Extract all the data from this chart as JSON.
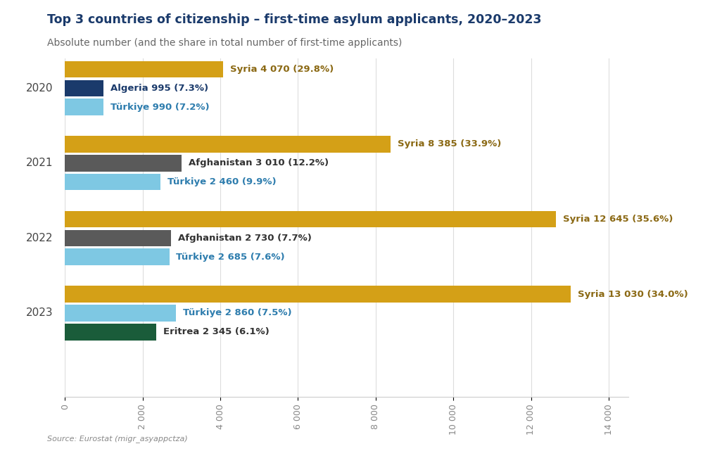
{
  "title": "Top 3 countries of citizenship – first-time asylum applicants, 2020–2023",
  "subtitle": "Absolute number (and the share in total number of first-time applicants)",
  "source": "Source: Eurostat (migr_asyappctza)",
  "bars": {
    "2020": [
      {
        "label": "Syria 4 070 (29.8%)",
        "value": 4070,
        "color": "#D4A017",
        "label_color": "#8B6914"
      },
      {
        "label": "Algeria 995 (7.3%)",
        "value": 995,
        "color": "#1A3A6B",
        "label_color": "#1A3A6B"
      },
      {
        "label": "Türkiye 990 (7.2%)",
        "value": 990,
        "color": "#7EC8E3",
        "label_color": "#2E7DAE"
      }
    ],
    "2021": [
      {
        "label": "Syria 8 385 (33.9%)",
        "value": 8385,
        "color": "#D4A017",
        "label_color": "#8B6914"
      },
      {
        "label": "Afghanistan 3 010 (12.2%)",
        "value": 3010,
        "color": "#5A5A5A",
        "label_color": "#333333"
      },
      {
        "label": "Türkiye 2 460 (9.9%)",
        "value": 2460,
        "color": "#7EC8E3",
        "label_color": "#2E7DAE"
      }
    ],
    "2022": [
      {
        "label": "Syria 12 645 (35.6%)",
        "value": 12645,
        "color": "#D4A017",
        "label_color": "#8B6914"
      },
      {
        "label": "Afghanistan 2 730 (7.7%)",
        "value": 2730,
        "color": "#5A5A5A",
        "label_color": "#333333"
      },
      {
        "label": "Türkiye 2 685 (7.6%)",
        "value": 2685,
        "color": "#7EC8E3",
        "label_color": "#2E7DAE"
      }
    ],
    "2023": [
      {
        "label": "Syria 13 030 (34.0%)",
        "value": 13030,
        "color": "#D4A017",
        "label_color": "#8B6914"
      },
      {
        "label": "Türkiye 2 860 (7.5%)",
        "value": 2860,
        "color": "#7EC8E3",
        "label_color": "#2E7DAE"
      },
      {
        "label": "Eritrea 2 345 (6.1%)",
        "value": 2345,
        "color": "#1A5C3A",
        "label_color": "#333333"
      }
    ]
  },
  "year_keys": [
    "2020",
    "2021",
    "2022",
    "2023"
  ],
  "xlim": [
    0,
    14500
  ],
  "xticks": [
    0,
    2000,
    4000,
    6000,
    8000,
    10000,
    12000,
    14000
  ],
  "xtick_labels": [
    "0",
    "2 000",
    "4 000",
    "6 000",
    "8 000",
    "10 000",
    "12 000",
    "14 000"
  ],
  "title_color": "#1A3A6B",
  "subtitle_color": "#666666",
  "background_color": "#FFFFFF"
}
